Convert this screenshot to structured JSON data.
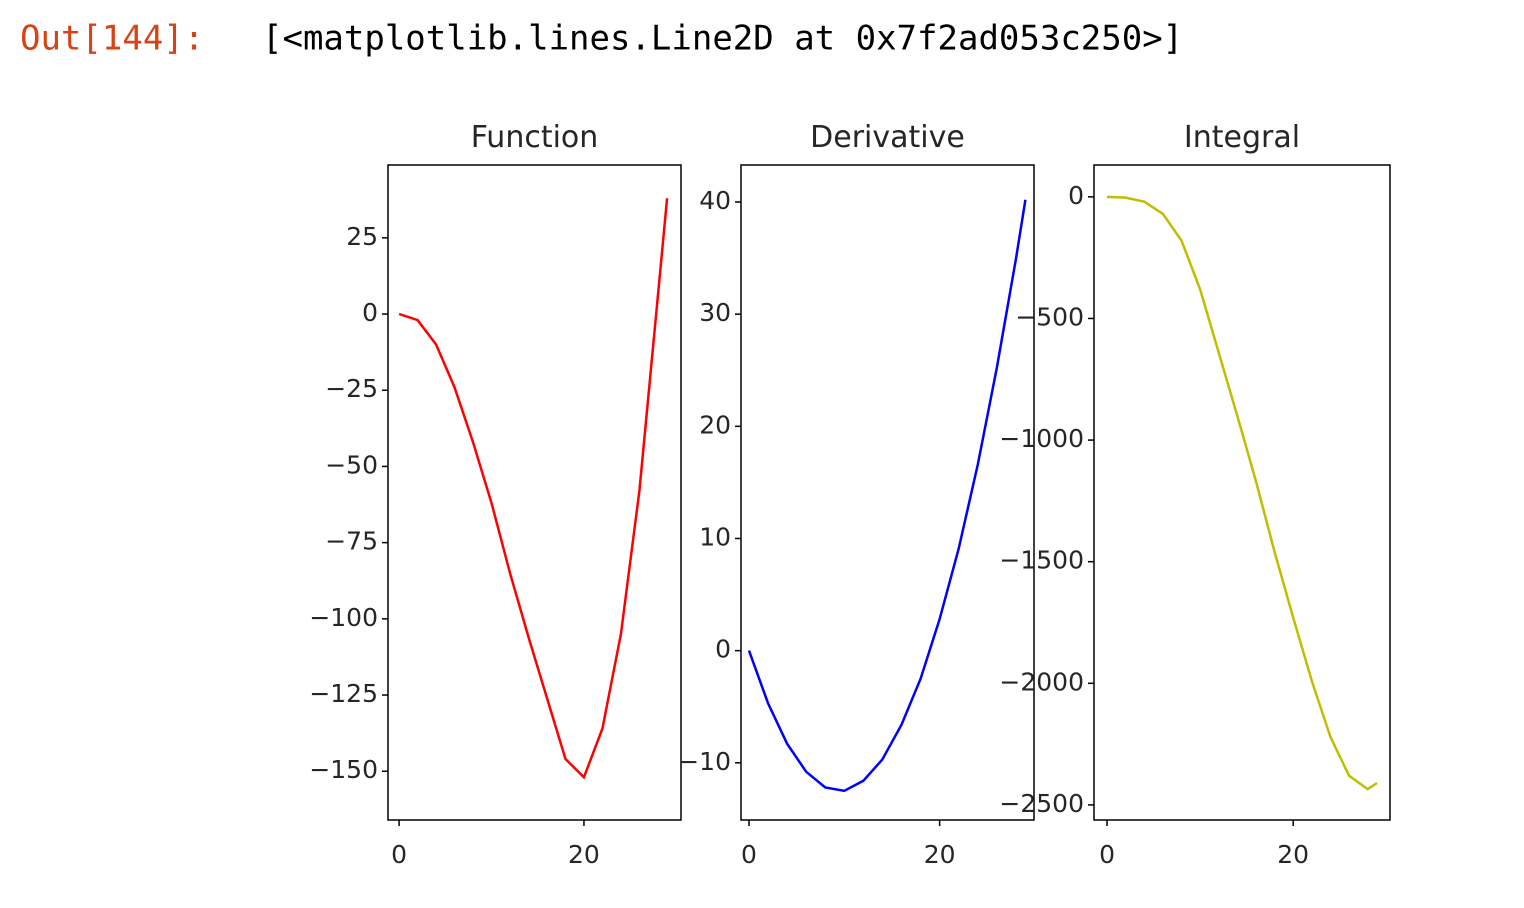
{
  "prompt": "Out[144]:",
  "output_text": "[<matplotlib.lines.Line2D at 0x7f2ad053c250>]",
  "chart_data": [
    {
      "type": "line",
      "title": "Function",
      "x": [
        0,
        2,
        4,
        6,
        8,
        10,
        12,
        14,
        16,
        18,
        20,
        22,
        24,
        26,
        28,
        29
      ],
      "series": [
        {
          "name": "Function",
          "color": "#ff0000",
          "values": [
            0,
            -2,
            -10,
            -24,
            -42,
            -62,
            -85,
            -106,
            -126,
            -146,
            -152,
            -136,
            -105,
            -58,
            6,
            38
          ]
        }
      ],
      "xlim": [
        -1.2,
        30.5
      ],
      "xticks": [
        0,
        20
      ],
      "ylim": [
        -166,
        48.9
      ],
      "yticks": [
        {
          "value": -150,
          "label": "−150"
        },
        {
          "value": -125,
          "label": "−125"
        },
        {
          "value": -100,
          "label": "−100"
        },
        {
          "value": -75,
          "label": "−75"
        },
        {
          "value": -50,
          "label": "−50"
        },
        {
          "value": -25,
          "label": "−25"
        },
        0,
        25
      ]
    },
    {
      "type": "line",
      "title": "Derivative",
      "x": [
        0,
        2,
        4,
        6,
        8,
        10,
        12,
        14,
        16,
        18,
        20,
        22,
        24,
        26,
        28,
        29
      ],
      "series": [
        {
          "name": "Derivative",
          "color": "#0000ff",
          "values": [
            0,
            -4.7,
            -8.3,
            -10.8,
            -12.2,
            -12.5,
            -11.6,
            -9.7,
            -6.6,
            -2.5,
            2.8,
            9.1,
            16.6,
            25.2,
            34.9,
            40.2
          ]
        }
      ],
      "xlim": [
        -0.84,
        29.9
      ],
      "xticks": [
        0,
        20
      ],
      "ylim": [
        -15.1,
        43.3
      ],
      "yticks": [
        {
          "value": -10,
          "label": "−10"
        },
        0,
        10,
        20,
        30,
        40
      ]
    },
    {
      "type": "line",
      "title": "Integral",
      "x": [
        0,
        2,
        4,
        6,
        8,
        10,
        12,
        14,
        16,
        18,
        20,
        22,
        24,
        26,
        28,
        29
      ],
      "series": [
        {
          "name": "Integral",
          "color": "#bfbf00",
          "values": [
            0,
            -3,
            -20,
            -70,
            -180,
            -380,
            -640,
            -900,
            -1170,
            -1460,
            -1730,
            -1990,
            -2220,
            -2380,
            -2435,
            -2410
          ]
        }
      ],
      "xlim": [
        -1.4,
        30.4
      ],
      "xticks": [
        0,
        20
      ],
      "ylim": [
        -2562,
        131
      ],
      "yticks": [
        {
          "value": -2500,
          "label": "−2500"
        },
        {
          "value": -2000,
          "label": "−2000"
        },
        {
          "value": -1500,
          "label": "−1500"
        },
        {
          "value": -1000,
          "label": "−1000"
        },
        {
          "value": -500,
          "label": "−500"
        },
        0
      ]
    }
  ]
}
